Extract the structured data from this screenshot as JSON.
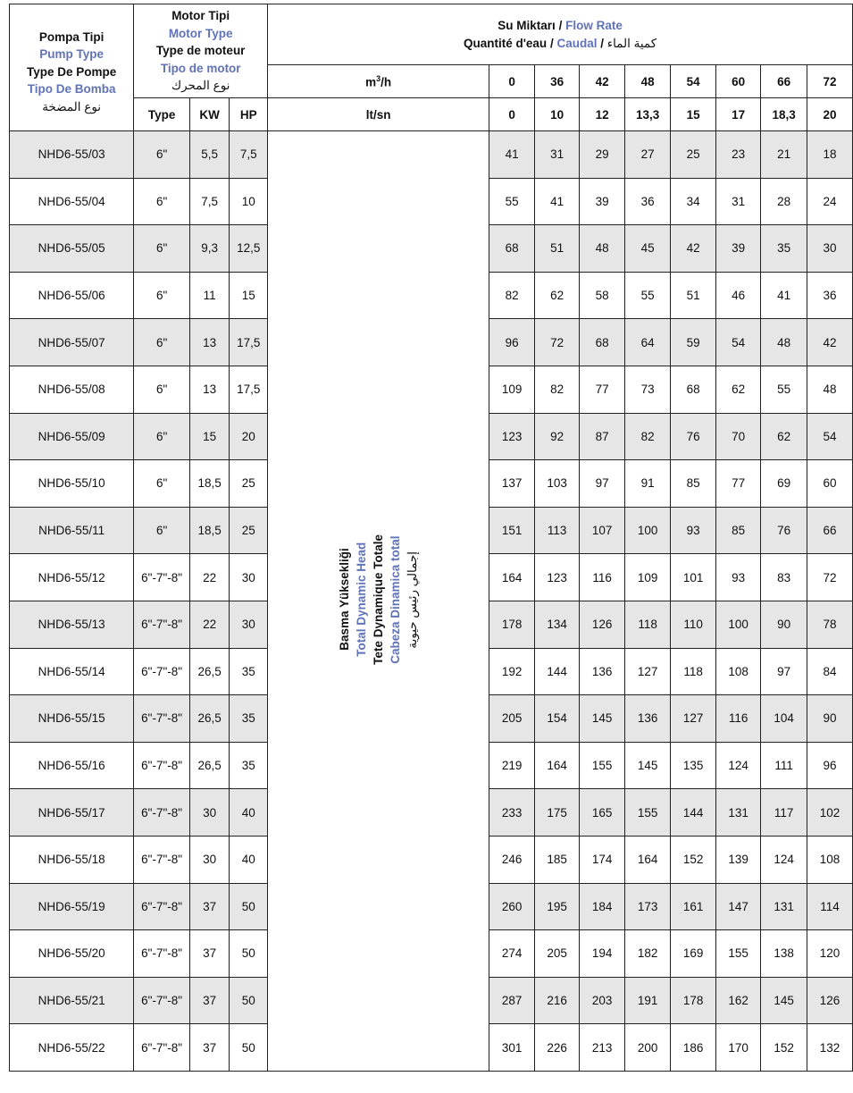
{
  "header": {
    "pump_type": [
      "Pompa Tipi",
      "Pump Type",
      "Type De Pompe",
      "Tipo De Bomba",
      "نوع المضخة"
    ],
    "motor_type": [
      "Motor Tipi",
      "Motor Type",
      "Type de moteur",
      "Tipo de motor",
      "نوع المحرك"
    ],
    "flow_rate_line1": {
      "tr": "Su Miktarı",
      "sep": " / ",
      "en": "Flow Rate"
    },
    "flow_rate_line2": {
      "fr": "Quantité d'eau",
      "sep1": " / ",
      "es": "Caudal",
      "sep2": " / ",
      "ar": "كمية الماء"
    },
    "motor_cols": [
      "Type",
      "KW",
      "HP"
    ],
    "unit_m3h": "m",
    "unit_m3h_sup": "3",
    "unit_m3h_suffix": "/h",
    "unit_ltsn": "lt/sn",
    "flow_m3h": [
      "0",
      "36",
      "42",
      "48",
      "54",
      "60",
      "66",
      "72"
    ],
    "flow_ltsn": [
      "0",
      "10",
      "12",
      "13,3",
      "15",
      "17",
      "18,3",
      "20"
    ],
    "head_label": [
      "Basma Yüksekliği",
      "Total Dynamic Head",
      "Tete Dynamique Totale",
      "Cabeza Dinamica total",
      "إجمالي رئيس حيوية"
    ]
  },
  "colors": {
    "accent_blue": "#6073b8",
    "row_gray": "#e6e6e6",
    "border": "#222222"
  },
  "rows": [
    {
      "model": "NHD6-55/03",
      "type": "6\"",
      "kw": "5,5",
      "hp": "7,5",
      "head": [
        "41",
        "31",
        "29",
        "27",
        "25",
        "23",
        "21",
        "18"
      ]
    },
    {
      "model": "NHD6-55/04",
      "type": "6\"",
      "kw": "7,5",
      "hp": "10",
      "head": [
        "55",
        "41",
        "39",
        "36",
        "34",
        "31",
        "28",
        "24"
      ]
    },
    {
      "model": "NHD6-55/05",
      "type": "6\"",
      "kw": "9,3",
      "hp": "12,5",
      "head": [
        "68",
        "51",
        "48",
        "45",
        "42",
        "39",
        "35",
        "30"
      ]
    },
    {
      "model": "NHD6-55/06",
      "type": "6\"",
      "kw": "11",
      "hp": "15",
      "head": [
        "82",
        "62",
        "58",
        "55",
        "51",
        "46",
        "41",
        "36"
      ]
    },
    {
      "model": "NHD6-55/07",
      "type": "6\"",
      "kw": "13",
      "hp": "17,5",
      "head": [
        "96",
        "72",
        "68",
        "64",
        "59",
        "54",
        "48",
        "42"
      ]
    },
    {
      "model": "NHD6-55/08",
      "type": "6\"",
      "kw": "13",
      "hp": "17,5",
      "head": [
        "109",
        "82",
        "77",
        "73",
        "68",
        "62",
        "55",
        "48"
      ]
    },
    {
      "model": "NHD6-55/09",
      "type": "6\"",
      "kw": "15",
      "hp": "20",
      "head": [
        "123",
        "92",
        "87",
        "82",
        "76",
        "70",
        "62",
        "54"
      ]
    },
    {
      "model": "NHD6-55/10",
      "type": "6\"",
      "kw": "18,5",
      "hp": "25",
      "head": [
        "137",
        "103",
        "97",
        "91",
        "85",
        "77",
        "69",
        "60"
      ]
    },
    {
      "model": "NHD6-55/11",
      "type": "6\"",
      "kw": "18,5",
      "hp": "25",
      "head": [
        "151",
        "113",
        "107",
        "100",
        "93",
        "85",
        "76",
        "66"
      ]
    },
    {
      "model": "NHD6-55/12",
      "type": "6\"-7\"-8\"",
      "kw": "22",
      "hp": "30",
      "head": [
        "164",
        "123",
        "116",
        "109",
        "101",
        "93",
        "83",
        "72"
      ]
    },
    {
      "model": "NHD6-55/13",
      "type": "6\"-7\"-8\"",
      "kw": "22",
      "hp": "30",
      "head": [
        "178",
        "134",
        "126",
        "118",
        "110",
        "100",
        "90",
        "78"
      ]
    },
    {
      "model": "NHD6-55/14",
      "type": "6\"-7\"-8\"",
      "kw": "26,5",
      "hp": "35",
      "head": [
        "192",
        "144",
        "136",
        "127",
        "118",
        "108",
        "97",
        "84"
      ]
    },
    {
      "model": "NHD6-55/15",
      "type": "6\"-7\"-8\"",
      "kw": "26,5",
      "hp": "35",
      "head": [
        "205",
        "154",
        "145",
        "136",
        "127",
        "116",
        "104",
        "90"
      ]
    },
    {
      "model": "NHD6-55/16",
      "type": "6\"-7\"-8\"",
      "kw": "26,5",
      "hp": "35",
      "head": [
        "219",
        "164",
        "155",
        "145",
        "135",
        "124",
        "111",
        "96"
      ]
    },
    {
      "model": "NHD6-55/17",
      "type": "6\"-7\"-8\"",
      "kw": "30",
      "hp": "40",
      "head": [
        "233",
        "175",
        "165",
        "155",
        "144",
        "131",
        "117",
        "102"
      ]
    },
    {
      "model": "NHD6-55/18",
      "type": "6\"-7\"-8\"",
      "kw": "30",
      "hp": "40",
      "head": [
        "246",
        "185",
        "174",
        "164",
        "152",
        "139",
        "124",
        "108"
      ]
    },
    {
      "model": "NHD6-55/19",
      "type": "6\"-7\"-8\"",
      "kw": "37",
      "hp": "50",
      "head": [
        "260",
        "195",
        "184",
        "173",
        "161",
        "147",
        "131",
        "114"
      ]
    },
    {
      "model": "NHD6-55/20",
      "type": "6\"-7\"-8\"",
      "kw": "37",
      "hp": "50",
      "head": [
        "274",
        "205",
        "194",
        "182",
        "169",
        "155",
        "138",
        "120"
      ]
    },
    {
      "model": "NHD6-55/21",
      "type": "6\"-7\"-8\"",
      "kw": "37",
      "hp": "50",
      "head": [
        "287",
        "216",
        "203",
        "191",
        "178",
        "162",
        "145",
        "126"
      ]
    },
    {
      "model": "NHD6-55/22",
      "type": "6\"-7\"-8\"",
      "kw": "37",
      "hp": "50",
      "head": [
        "301",
        "226",
        "213",
        "200",
        "186",
        "170",
        "152",
        "132"
      ]
    }
  ]
}
